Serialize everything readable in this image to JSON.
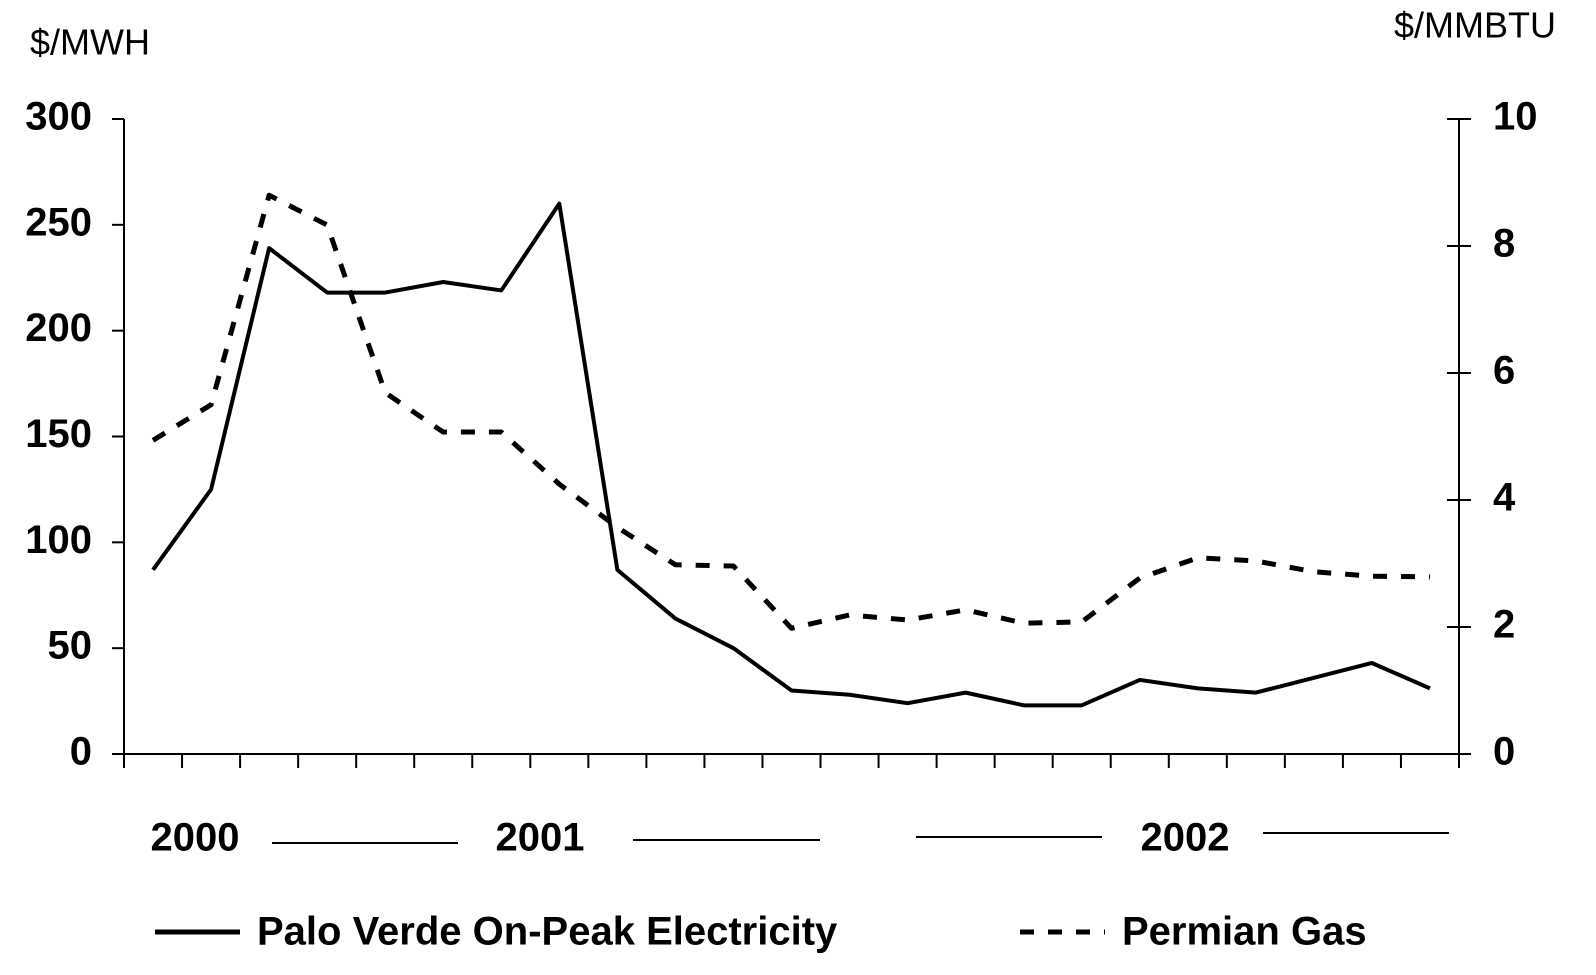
{
  "chart_data": {
    "type": "line",
    "y_label": "$/MWH",
    "y2_label": "$/MMBTU",
    "categories": [
      null,
      null,
      null,
      null,
      null,
      null,
      null,
      null,
      null,
      null,
      null,
      null,
      null,
      null,
      null,
      null,
      null,
      null,
      null,
      null,
      null,
      null,
      null
    ],
    "x_groups": [
      "2000",
      "2001",
      "2002"
    ],
    "series": [
      {
        "name": "Palo Verde On-Peak Electricity",
        "color": "#000000",
        "line_style": "solid",
        "axis": "y",
        "values": [
          87,
          125,
          239,
          218,
          218,
          223,
          219,
          260,
          87,
          64,
          50,
          30,
          28,
          24,
          29,
          23,
          23,
          35,
          31,
          29,
          36,
          43,
          31
        ]
      },
      {
        "name": "Permian Gas",
        "color": "#000000",
        "line_style": "dashed",
        "axis": "y2",
        "values": [
          4.94,
          5.5,
          8.8,
          8.33,
          5.69,
          5.07,
          5.07,
          4.25,
          3.57,
          2.98,
          2.96,
          1.98,
          2.19,
          2.11,
          2.27,
          2.06,
          2.08,
          2.77,
          3.09,
          3.04,
          2.87,
          2.8,
          2.79
        ]
      }
    ],
    "ylim": [
      0,
      300
    ],
    "yticks": [
      0,
      50,
      100,
      150,
      200,
      250,
      300
    ],
    "y2lim": [
      0,
      10
    ],
    "y2ticks": [
      0,
      2,
      4,
      6,
      8,
      10
    ],
    "grid": false
  }
}
